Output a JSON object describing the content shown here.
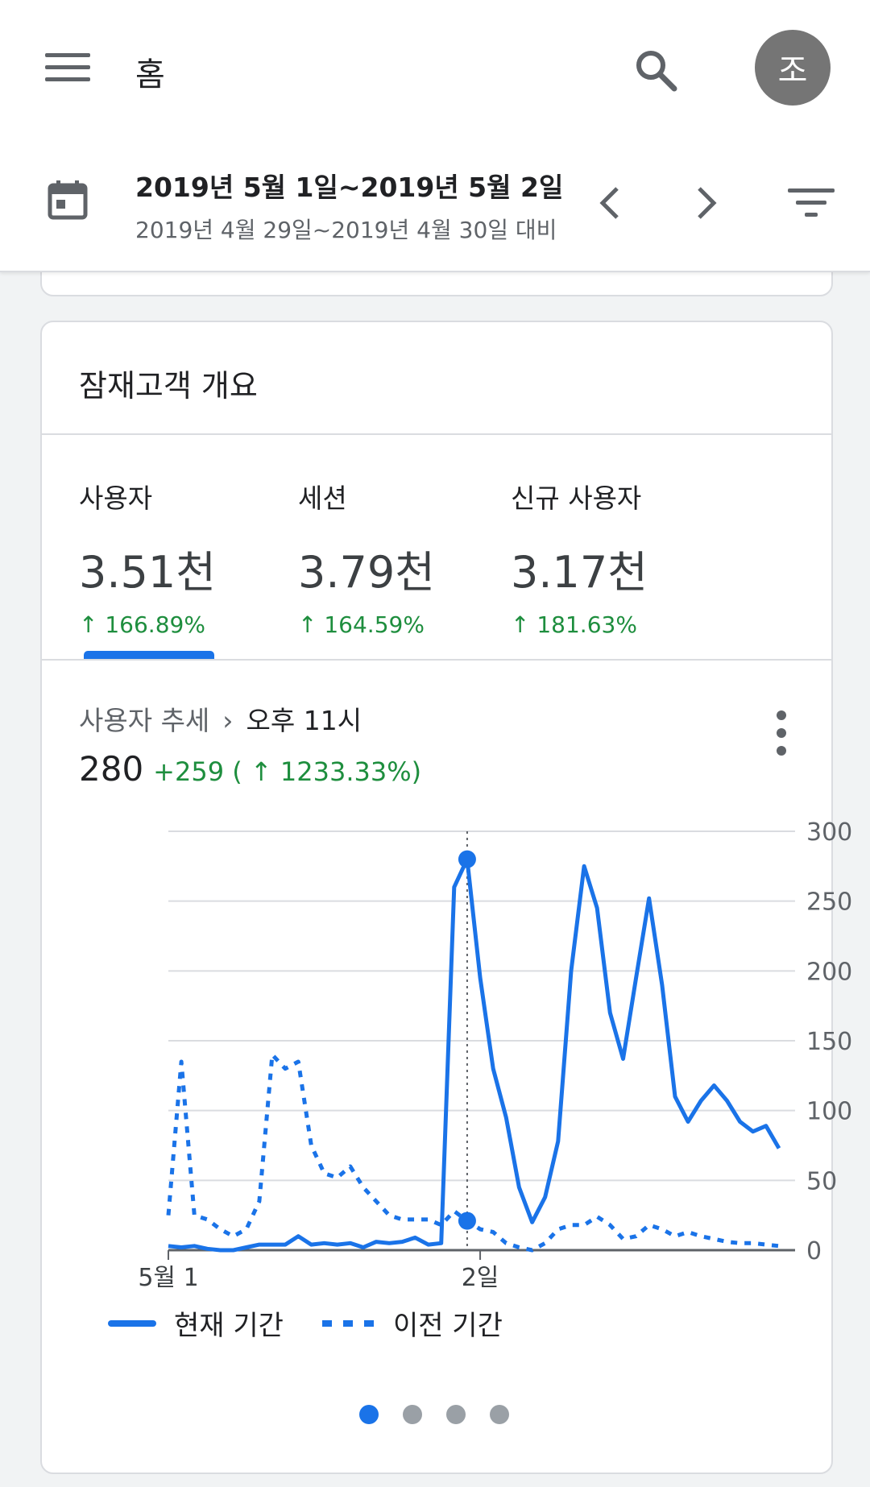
{
  "header": {
    "title": "홈",
    "avatar_initial": "조",
    "date_range": "2019년 5월 1일~2019년 5월 2일",
    "compare_range": "2019년 4월 29일~2019년 4월 30일 대비"
  },
  "card": {
    "title": "잠재고객 개요",
    "metrics": [
      {
        "label": "사용자",
        "value": "3.51천",
        "change": "↑ 166.89%"
      },
      {
        "label": "세션",
        "value": "3.79천",
        "change": "↑ 164.59%"
      },
      {
        "label": "신규 사용자",
        "value": "3.17천",
        "change": "↑ 181.63%"
      }
    ],
    "trend": {
      "label": "사용자 추세",
      "selected_time": "오후 11시",
      "value": "280",
      "delta": "+259 ( ↑ 1233.33%)"
    },
    "pager": {
      "pages": 4,
      "active": 0
    }
  },
  "chart_data": {
    "type": "line",
    "title": "사용자 추세",
    "x_tick_labels": [
      "5월 1",
      "2일"
    ],
    "y_ticks": [
      0,
      50,
      100,
      150,
      200,
      250,
      300
    ],
    "ylim": [
      0,
      300
    ],
    "series": [
      {
        "name": "현재 기간",
        "style": "solid",
        "values": [
          3,
          2,
          3,
          1,
          0,
          0,
          2,
          4,
          4,
          4,
          10,
          4,
          5,
          4,
          5,
          2,
          6,
          5,
          6,
          9,
          4,
          5,
          260,
          280,
          195,
          130,
          95,
          45,
          20,
          38,
          78,
          200,
          275,
          245,
          170,
          137,
          195,
          252,
          190,
          110,
          92,
          107,
          118,
          107,
          92,
          85,
          89,
          73
        ]
      },
      {
        "name": "이전 기간",
        "style": "dotted",
        "values": [
          25,
          135,
          25,
          22,
          15,
          10,
          15,
          35,
          140,
          130,
          135,
          75,
          55,
          52,
          60,
          45,
          35,
          25,
          22,
          22,
          22,
          18,
          28,
          21,
          15,
          13,
          5,
          2,
          0,
          5,
          15,
          18,
          18,
          24,
          18,
          8,
          10,
          18,
          15,
          10,
          13,
          10,
          8,
          6,
          5,
          5,
          4,
          3
        ]
      }
    ],
    "highlight_index": 23,
    "colors": {
      "series": "#1a73e8",
      "grid": "#dadce0",
      "axis": "#5f6368"
    }
  }
}
